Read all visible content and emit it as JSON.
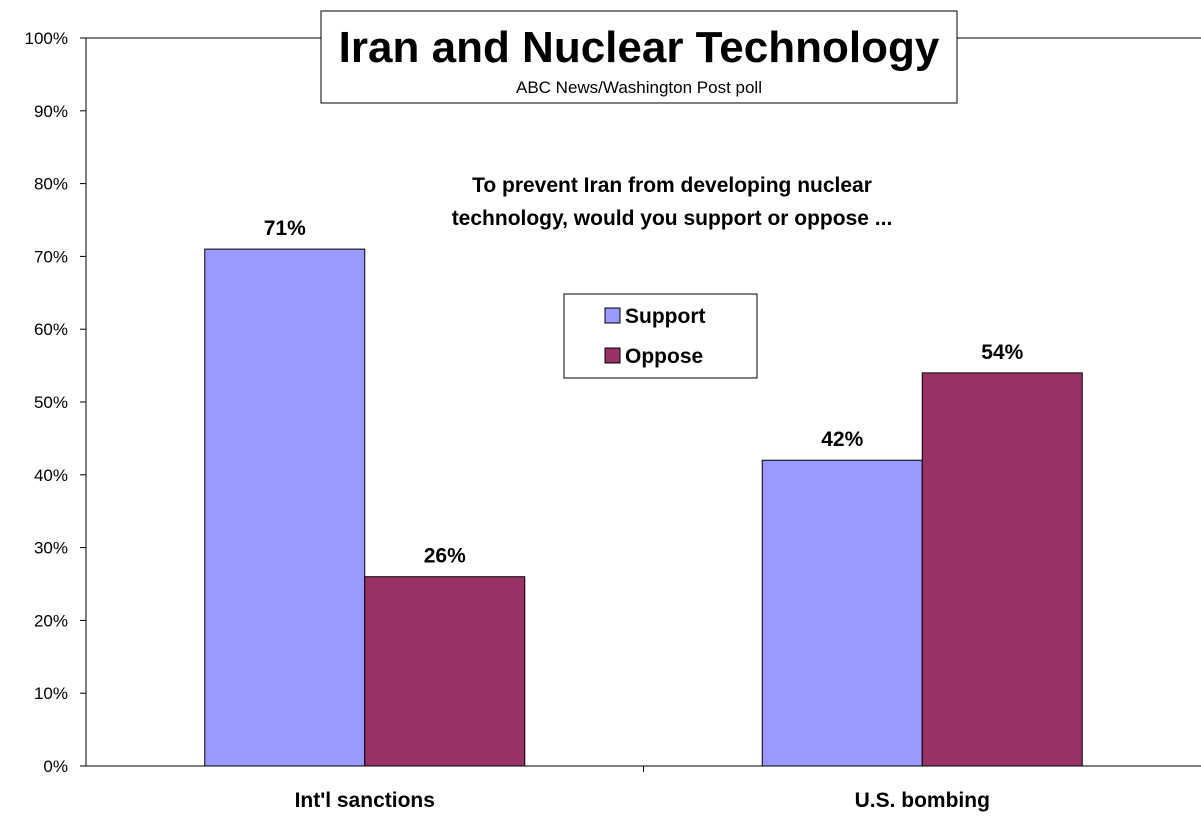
{
  "chart_data": {
    "type": "bar",
    "title": "Iran and Nuclear Technology",
    "subtitle": "ABC News/Washington Post poll",
    "question": "To prevent Iran from developing nuclear technology, would you support or oppose ...",
    "question_lines": [
      "To prevent Iran from developing nuclear",
      "technology, would you support or oppose ..."
    ],
    "categories": [
      "Int'l sanctions",
      "U.S. bombing"
    ],
    "series": [
      {
        "name": "Support",
        "values": [
          71,
          42
        ],
        "color": "#9999FF"
      },
      {
        "name": "Oppose",
        "values": [
          26,
          54
        ],
        "color": "#993366"
      }
    ],
    "data_labels": [
      [
        "71%",
        "42%"
      ],
      [
        "26%",
        "54%"
      ]
    ],
    "y_ticks": [
      "0%",
      "10%",
      "20%",
      "30%",
      "40%",
      "50%",
      "60%",
      "70%",
      "80%",
      "90%",
      "100%"
    ],
    "ylim": [
      0,
      100
    ],
    "legend_position": "center",
    "grid": false
  }
}
